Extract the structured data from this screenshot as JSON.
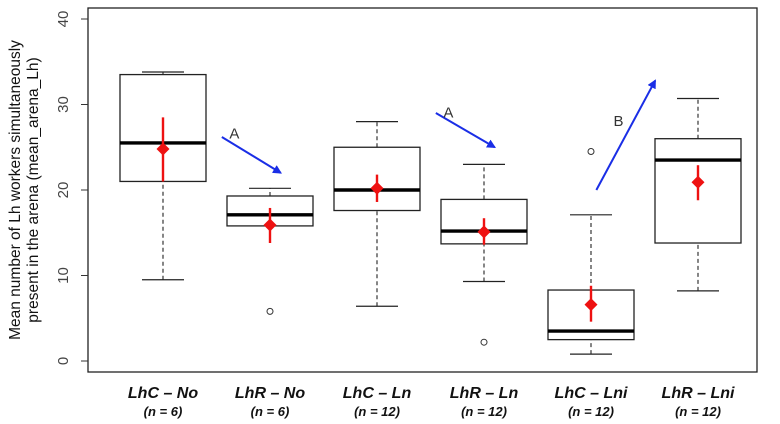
{
  "chart_data": {
    "type": "boxplot",
    "title": "",
    "xlabel": "",
    "ylabel_lines": [
      "Mean number of Lh workers simultaneously",
      "present in the arena (mean_arena_Lh)"
    ],
    "ylim": [
      0,
      40
    ],
    "yticks": [
      0,
      10,
      20,
      30,
      40
    ],
    "grid": false,
    "colors": {
      "box": "#222222",
      "median": "#000000",
      "mean": "#ee1111",
      "arrow": "#1a2ee6"
    },
    "groups": [
      {
        "name": "LhC – No",
        "n_label": "(n = 6)",
        "whisker_low": 9.5,
        "q1": 21,
        "median": 25.5,
        "q3": 33.5,
        "whisker_high": 33.8,
        "outliers": [],
        "mean": 24.8,
        "ci_low": 21,
        "ci_high": 28.5
      },
      {
        "name": "LhR – No",
        "n_label": "(n = 6)",
        "whisker_low": 15.8,
        "q1": 15.8,
        "median": 17.1,
        "q3": 19.3,
        "whisker_high": 20.2,
        "outliers": [
          5.8
        ],
        "mean": 15.9,
        "ci_low": 13.8,
        "ci_high": 17.9
      },
      {
        "name": "LhC – Ln",
        "n_label": "(n = 12)",
        "whisker_low": 6.4,
        "q1": 17.6,
        "median": 20,
        "q3": 25,
        "whisker_high": 28,
        "outliers": [],
        "mean": 20.2,
        "ci_low": 18.6,
        "ci_high": 21.8
      },
      {
        "name": "LhR – Ln",
        "n_label": "(n = 12)",
        "whisker_low": 9.3,
        "q1": 13.7,
        "median": 15.2,
        "q3": 18.9,
        "whisker_high": 23,
        "outliers": [
          2.2
        ],
        "mean": 15.1,
        "ci_low": 13.6,
        "ci_high": 16.7
      },
      {
        "name": "LhC – Lni",
        "n_label": "(n = 12)",
        "whisker_low": 0.8,
        "q1": 2.5,
        "median": 3.5,
        "q3": 8.3,
        "whisker_high": 17.1,
        "outliers": [
          24.5
        ],
        "mean": 6.6,
        "ci_low": 4.6,
        "ci_high": 8.8
      },
      {
        "name": "LhR – Lni",
        "n_label": "(n = 12)",
        "whisker_low": 8.2,
        "q1": 13.8,
        "median": 23.5,
        "q3": 26,
        "whisker_high": 30.7,
        "outliers": [],
        "mean": 20.9,
        "ci_low": 18.8,
        "ci_high": 22.9
      }
    ],
    "annotations": [
      {
        "label": "A",
        "from": {
          "x": 1.55,
          "y": 26.2
        },
        "to": {
          "x": 2.1,
          "y": 22.0
        },
        "label_at": {
          "x": 1.62,
          "y": 26.0
        }
      },
      {
        "label": "A",
        "from": {
          "x": 3.55,
          "y": 29.0
        },
        "to": {
          "x": 4.1,
          "y": 25.0
        },
        "label_at": {
          "x": 3.62,
          "y": 28.5
        }
      },
      {
        "label": "B",
        "from": {
          "x": 5.05,
          "y": 20.0
        },
        "to": {
          "x": 5.6,
          "y": 32.8
        },
        "label_at": {
          "x": 5.21,
          "y": 27.5
        }
      }
    ]
  }
}
